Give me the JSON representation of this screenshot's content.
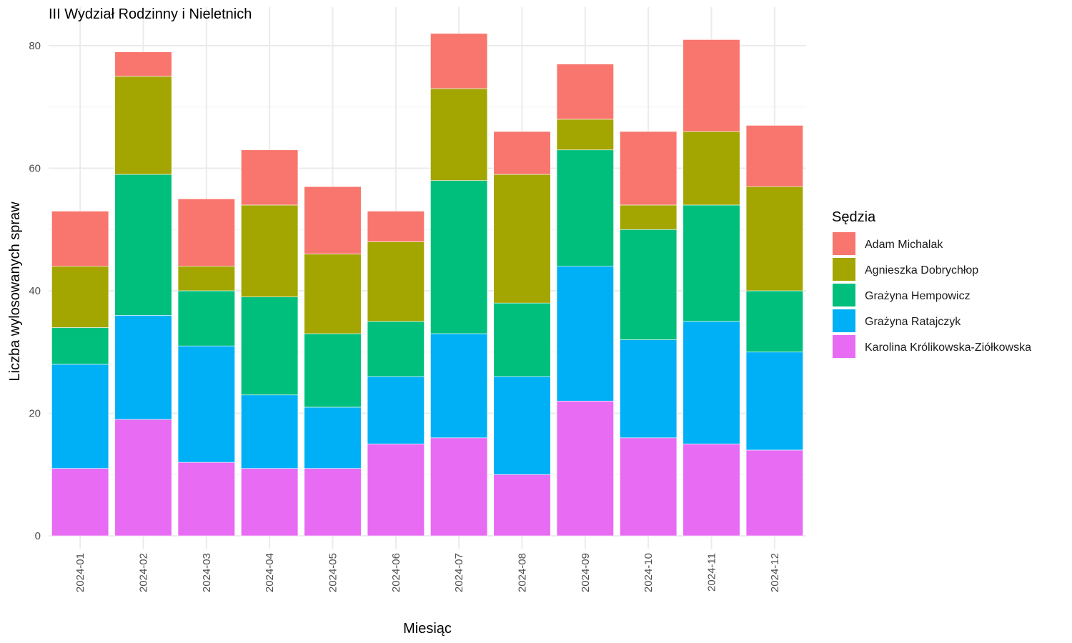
{
  "chart_data": {
    "type": "bar",
    "stacked": true,
    "title": "III Wydział Rodzinny i Nieletnich",
    "xlabel": "Miesiąc",
    "ylabel": "Liczba wylosowanych spraw",
    "ylim": [
      0,
      85
    ],
    "yticks": [
      0,
      20,
      40,
      60,
      80
    ],
    "grid": true,
    "legend_title": "Sędzia",
    "legend_position": "right",
    "categories": [
      "2024-01",
      "2024-02",
      "2024-03",
      "2024-04",
      "2024-05",
      "2024-06",
      "2024-07",
      "2024-08",
      "2024-09",
      "2024-10",
      "2024-11",
      "2024-12"
    ],
    "series": [
      {
        "name": "Karolina Królikowska-Ziółkowska",
        "color": "#E76BF3",
        "values": [
          11,
          19,
          12,
          11,
          11,
          15,
          16,
          10,
          22,
          16,
          15,
          14
        ]
      },
      {
        "name": "Grażyna Ratajczyk",
        "color": "#00B0F6",
        "values": [
          17,
          17,
          19,
          12,
          10,
          11,
          17,
          16,
          22,
          16,
          20,
          16
        ]
      },
      {
        "name": "Grażyna Hempowicz",
        "color": "#00BF7D",
        "values": [
          6,
          23,
          9,
          16,
          12,
          9,
          25,
          12,
          19,
          18,
          19,
          10
        ]
      },
      {
        "name": "Agnieszka Dobrychłop",
        "color": "#A3A500",
        "values": [
          10,
          16,
          4,
          15,
          13,
          13,
          15,
          21,
          5,
          4,
          12,
          17
        ]
      },
      {
        "name": "Adam Michalak",
        "color": "#F8766D",
        "values": [
          9,
          4,
          11,
          9,
          11,
          5,
          9,
          7,
          9,
          12,
          15,
          10
        ]
      }
    ],
    "legend_order": [
      "Adam Michalak",
      "Agnieszka Dobrychłop",
      "Grażyna Hempowicz",
      "Grażyna Ratajczyk",
      "Karolina Królikowska-Ziółkowska"
    ]
  }
}
